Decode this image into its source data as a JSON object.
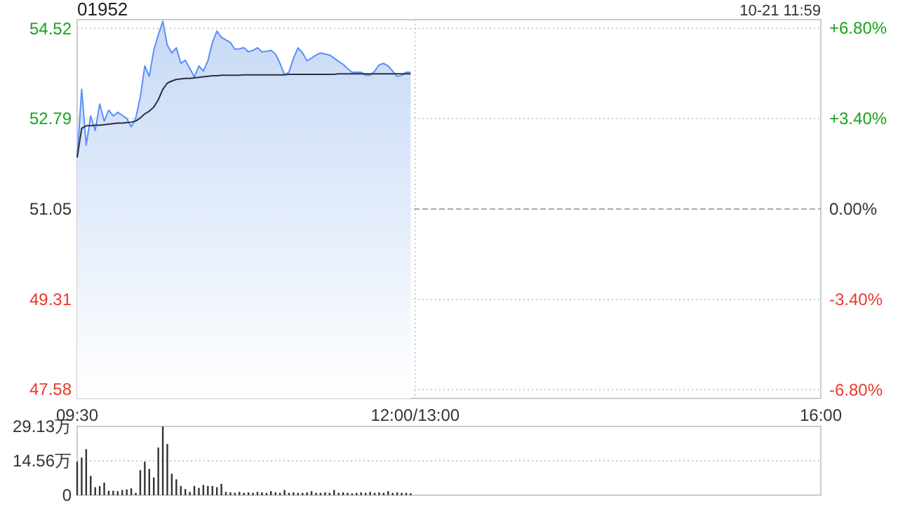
{
  "chart_data": [
    {
      "type": "area",
      "title": "01952",
      "annotations": [
        "10-21 11:59"
      ],
      "grid": true,
      "categories": [
        "09:30",
        null,
        null,
        null,
        null,
        null,
        null,
        null,
        null,
        null,
        null,
        null,
        null,
        null,
        null,
        null,
        null,
        null,
        null,
        null,
        null,
        null,
        null,
        null,
        null,
        null,
        null,
        null,
        null,
        null,
        null,
        null,
        null,
        null,
        null,
        null,
        null,
        null,
        null,
        null,
        null,
        null,
        null,
        null,
        null,
        null,
        null,
        null,
        null,
        null,
        null,
        null,
        null,
        null,
        null,
        null,
        null,
        null,
        null,
        null,
        null,
        null,
        null,
        null,
        null,
        null,
        null,
        null,
        null,
        null,
        null,
        null,
        null,
        null,
        null,
        "12:00/13:00",
        null,
        null,
        null,
        null,
        null,
        null,
        null,
        null,
        null,
        null,
        null,
        null,
        null,
        null,
        null,
        null,
        null,
        null,
        null,
        null,
        null,
        null,
        null,
        null,
        null,
        null,
        null,
        null,
        null,
        null,
        null,
        null,
        null,
        null,
        null,
        null,
        null,
        null,
        null,
        null,
        null,
        null,
        null,
        null,
        null,
        null,
        null,
        null,
        null,
        null,
        null,
        null,
        null,
        null,
        null,
        null,
        null,
        null,
        null,
        null,
        null,
        null,
        null,
        null,
        null,
        null,
        null,
        null,
        null,
        null,
        null,
        null,
        null,
        null,
        null,
        null,
        null,
        null,
        null,
        null,
        null,
        null,
        null,
        null,
        null,
        null,
        null,
        null,
        null,
        "16:00"
      ],
      "ref_lines": [
        {
          "axis": "y2",
          "value": 0,
          "color": "#aaaaaa",
          "line_style": "dashed"
        }
      ],
      "ylim": [
        47.41,
        54.69
      ],
      "yticks": [
        47.58,
        49.31,
        51.05,
        52.79,
        54.52
      ],
      "y2lim": [
        -7.12,
        7.12
      ],
      "y2ticks": [
        {
          "value": -6.8,
          "label": "-6.80%"
        },
        {
          "value": -3.4,
          "label": "-3.40%"
        },
        {
          "value": 0,
          "label": "0.00%"
        },
        {
          "value": 3.4,
          "label": "+3.40%"
        },
        {
          "value": 6.8,
          "label": "+6.80%"
        }
      ],
      "series": [
        {
          "color": "#5b8ff9",
          "values": [
            52.04,
            53.35,
            52.28,
            52.84,
            52.56,
            53.07,
            52.74,
            52.95,
            52.84,
            52.91,
            52.85,
            52.79,
            52.63,
            52.8,
            53.2,
            53.8,
            53.6,
            54.1,
            54.4,
            54.66,
            54.2,
            54.05,
            54.15,
            53.85,
            53.91,
            53.75,
            53.59,
            53.8,
            53.7,
            53.9,
            54.25,
            54.47,
            54.35,
            54.3,
            54.25,
            54.12,
            54.13,
            54.15,
            54.07,
            54.1,
            54.15,
            54.07,
            54.08,
            54.1,
            54.03,
            53.85,
            53.63,
            53.68,
            53.95,
            54.15,
            54.05,
            53.9,
            53.95,
            54.01,
            54.05,
            54.03,
            54.01,
            53.95,
            53.89,
            53.83,
            53.75,
            53.68,
            53.68,
            53.68,
            53.62,
            53.62,
            53.7,
            53.82,
            53.85,
            53.8,
            53.7,
            53.6,
            53.62,
            53.68,
            53.68,
            null,
            null,
            null,
            null,
            null,
            null,
            null,
            null,
            null,
            null,
            null,
            null,
            null,
            null,
            null,
            null,
            null,
            null,
            null,
            null,
            null,
            null,
            null,
            null,
            null,
            null,
            null,
            null,
            null,
            null,
            null,
            null,
            null,
            null,
            null,
            null,
            null,
            null,
            null,
            null,
            null,
            null,
            null,
            null,
            null,
            null,
            null,
            null,
            null,
            null,
            null,
            null,
            null,
            null,
            null,
            null,
            null,
            null,
            null,
            null,
            null,
            null,
            null,
            null,
            null,
            null,
            null,
            null,
            null,
            null,
            null,
            null,
            null,
            null,
            null,
            null,
            null,
            null,
            null,
            null,
            null,
            null,
            null,
            null,
            null,
            null,
            null,
            null,
            null,
            null,
            null
          ]
        },
        {
          "type": "line",
          "color": "#2b2f3e",
          "values": [
            52.04,
            52.6,
            52.65,
            52.65,
            52.66,
            52.66,
            52.67,
            52.68,
            52.69,
            52.7,
            52.7,
            52.71,
            52.72,
            52.74,
            52.8,
            52.88,
            52.93,
            53.01,
            53.15,
            53.35,
            53.47,
            53.51,
            53.54,
            53.55,
            53.56,
            53.56,
            53.57,
            53.58,
            53.59,
            53.6,
            53.61,
            53.61,
            53.62,
            53.62,
            53.62,
            53.62,
            53.62,
            53.63,
            53.63,
            53.63,
            53.63,
            53.63,
            53.63,
            53.63,
            53.63,
            53.63,
            53.63,
            53.64,
            53.64,
            53.64,
            53.64,
            53.64,
            53.64,
            53.64,
            53.64,
            53.64,
            53.64,
            53.64,
            53.65,
            53.65,
            53.65,
            53.65,
            53.65,
            53.65,
            53.65,
            53.65,
            53.65,
            53.65,
            53.65,
            53.65,
            53.65,
            53.65,
            53.65,
            53.65,
            53.65,
            null,
            null,
            null,
            null,
            null,
            null,
            null,
            null,
            null,
            null,
            null,
            null,
            null,
            null,
            null,
            null,
            null,
            null,
            null,
            null,
            null,
            null,
            null,
            null,
            null,
            null,
            null,
            null,
            null,
            null,
            null,
            null,
            null,
            null,
            null,
            null,
            null,
            null,
            null,
            null,
            null,
            null,
            null,
            null,
            null,
            null,
            null,
            null,
            null,
            null,
            null,
            null,
            null,
            null,
            null,
            null,
            null,
            null,
            null,
            null,
            null,
            null,
            null,
            null,
            null,
            null,
            null,
            null,
            null,
            null,
            null,
            null,
            null,
            null,
            null,
            null,
            null,
            null,
            null,
            null,
            null,
            null,
            null,
            null,
            null,
            null,
            null,
            null,
            null,
            null,
            null
          ]
        }
      ]
    },
    {
      "type": "bar",
      "grid": true,
      "categories": [
        null,
        null,
        null,
        null,
        null,
        null,
        null,
        null,
        null,
        null,
        null,
        null,
        null,
        null,
        null,
        null,
        null,
        null,
        null,
        null,
        null,
        null,
        null,
        null,
        null,
        null,
        null,
        null,
        null,
        null,
        null,
        null,
        null,
        null,
        null,
        null,
        null,
        null,
        null,
        null,
        null,
        null,
        null,
        null,
        null,
        null,
        null,
        null,
        null,
        null,
        null,
        null,
        null,
        null,
        null,
        null,
        null,
        null,
        null,
        null,
        null,
        null,
        null,
        null,
        null,
        null,
        null,
        null,
        null,
        null,
        null,
        null,
        null,
        null,
        null,
        null,
        null,
        null,
        null,
        null,
        null,
        null,
        null,
        null,
        null,
        null,
        null,
        null,
        null,
        null,
        null,
        null,
        null,
        null,
        null,
        null,
        null,
        null,
        null,
        null,
        null,
        null,
        null,
        null,
        null,
        null,
        null,
        null,
        null,
        null,
        null,
        null,
        null,
        null,
        null,
        null,
        null,
        null,
        null,
        null,
        null,
        null,
        null,
        null,
        null,
        null,
        null,
        null,
        null,
        null,
        null,
        null,
        null,
        null,
        null,
        null,
        null,
        null,
        null,
        null,
        null,
        null,
        null,
        null,
        null,
        null,
        null,
        null,
        null,
        null,
        null,
        null,
        null,
        null,
        null,
        null,
        null,
        null,
        null,
        null,
        null,
        null,
        null,
        null,
        null,
        null
      ],
      "ylim": [
        0,
        29.13
      ],
      "yticks": [
        0,
        {
          "value": 14.56,
          "label": "14.56万"
        },
        {
          "value": 29.13,
          "label": "29.13万"
        }
      ],
      "series": [
        {
          "color": "#333333",
          "values": [
            14.2,
            15.9,
            19.5,
            8.2,
            3.4,
            3.9,
            5.3,
            1.9,
            1.9,
            1.7,
            2.2,
            2.4,
            2.9,
            1.0,
            10.6,
            14.2,
            11.1,
            7.5,
            20.2,
            29.1,
            21.7,
            9.1,
            6.7,
            3.9,
            2.6,
            1.4,
            3.9,
            3.1,
            4.3,
            3.9,
            3.9,
            3.4,
            4.8,
            1.4,
            1.2,
            1.0,
            1.4,
            1.0,
            1.2,
            1.0,
            1.4,
            1.2,
            1.0,
            1.7,
            1.2,
            1.0,
            2.2,
            1.0,
            1.2,
            1.0,
            1.0,
            1.2,
            1.7,
            1.0,
            1.0,
            1.2,
            1.0,
            2.2,
            1.0,
            1.2,
            1.0,
            0.8,
            1.0,
            1.2,
            1.0,
            1.4,
            1.0,
            1.2,
            1.0,
            1.7,
            1.0,
            1.2,
            1.0,
            1.0,
            0.8,
            null,
            null,
            null,
            null,
            null,
            null,
            null,
            null,
            null,
            null,
            null,
            null,
            null,
            null,
            null,
            null,
            null,
            null,
            null,
            null,
            null,
            null,
            null,
            null,
            null,
            null,
            null,
            null,
            null,
            null,
            null,
            null,
            null,
            null,
            null,
            null,
            null,
            null,
            null,
            null,
            null,
            null,
            null,
            null,
            null,
            null,
            null,
            null,
            null,
            null,
            null,
            null,
            null,
            null,
            null,
            null,
            null,
            null,
            null,
            null,
            null,
            null,
            null,
            null,
            null,
            null,
            null,
            null,
            null,
            null,
            null,
            null,
            null,
            null,
            null,
            null,
            null,
            null,
            null,
            null,
            null,
            null,
            null,
            null,
            null,
            null,
            null,
            null,
            null,
            null,
            null
          ]
        }
      ]
    }
  ]
}
